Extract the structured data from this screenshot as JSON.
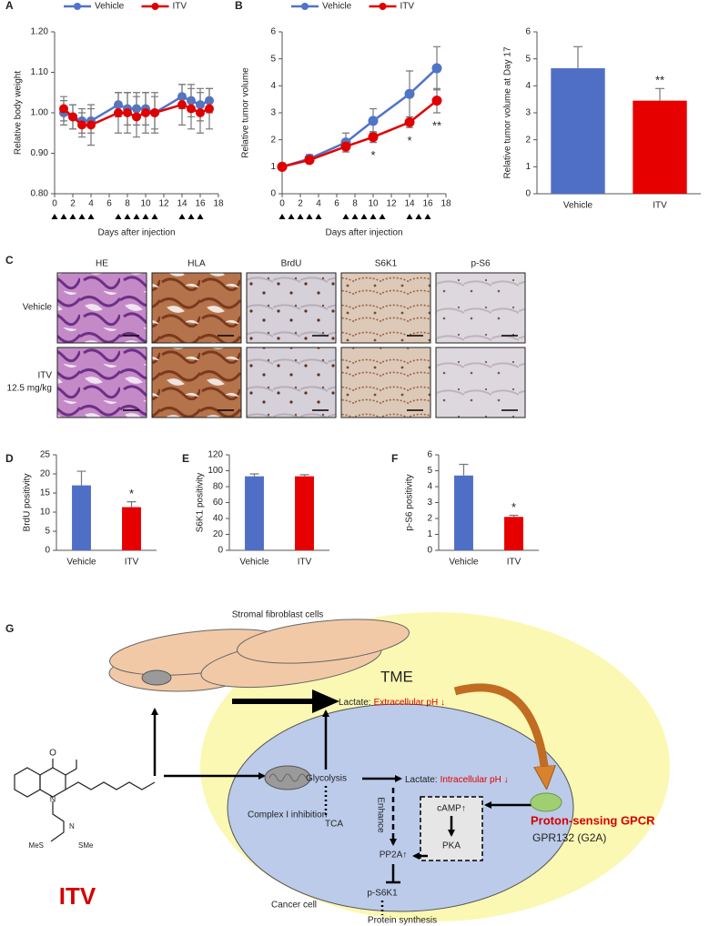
{
  "chart_data": [
    {
      "type": "line",
      "panel": "A",
      "xlabel": "Days after injection",
      "ylabel": "Relative body weight",
      "x": [
        1,
        2,
        3,
        4,
        7,
        8,
        9,
        10,
        11,
        14,
        15,
        16,
        17
      ],
      "xlim": [
        0,
        18
      ],
      "xticks": [
        0,
        2,
        4,
        6,
        8,
        10,
        12,
        14,
        16,
        18
      ],
      "ylim": [
        0.8,
        1.2
      ],
      "yticks": [
        {
          "value": 0.8,
          "label": "0.80"
        },
        {
          "value": 0.9,
          "label": "0.90"
        },
        {
          "value": 1.0,
          "label": "1.00"
        },
        {
          "value": 1.1,
          "label": "1.10"
        },
        {
          "value": 1.2,
          "label": "1.20"
        }
      ],
      "dose_days": [
        0,
        1,
        2,
        3,
        4,
        7,
        8,
        9,
        10,
        11,
        14,
        15,
        16
      ],
      "series": [
        {
          "name": "Vehicle",
          "color": "#4f74c8",
          "values": [
            1.0,
            0.99,
            0.98,
            0.98,
            1.02,
            1.01,
            1.01,
            1.01,
            1.0,
            1.04,
            1.03,
            1.02,
            1.03
          ],
          "errors": [
            0.03,
            0.03,
            0.03,
            0.03,
            0.03,
            0.04,
            0.04,
            0.04,
            0.05,
            0.03,
            0.04,
            0.04,
            0.03
          ]
        },
        {
          "name": "ITV",
          "color": "#e00000",
          "values": [
            1.01,
            0.99,
            0.97,
            0.97,
            1.0,
            1.0,
            0.99,
            1.0,
            1.0,
            1.02,
            1.01,
            1.0,
            1.01
          ],
          "errors": [
            0.03,
            0.03,
            0.03,
            0.05,
            0.05,
            0.05,
            0.05,
            0.05,
            0.04,
            0.05,
            0.05,
            0.05,
            0.05
          ]
        }
      ]
    },
    {
      "type": "line",
      "panel": "B",
      "xlabel": "Days after injection",
      "ylabel": "Relative tumor volume",
      "x": [
        0,
        3,
        7,
        10,
        14,
        17
      ],
      "xlim": [
        0,
        18
      ],
      "xticks": [
        0,
        2,
        4,
        6,
        8,
        10,
        12,
        14,
        16,
        18
      ],
      "ylim": [
        0,
        6
      ],
      "yticks": [
        0,
        1,
        2,
        3,
        4,
        5,
        6
      ],
      "dose_days": [
        0,
        1,
        2,
        3,
        4,
        7,
        8,
        9,
        10,
        11,
        14,
        15,
        16
      ],
      "series": [
        {
          "name": "Vehicle",
          "color": "#4f74c8",
          "values": [
            1.0,
            1.3,
            1.9,
            2.7,
            3.7,
            4.65
          ],
          "errors": [
            0.05,
            0.15,
            0.35,
            0.45,
            0.85,
            0.8
          ]
        },
        {
          "name": "ITV",
          "color": "#e00000",
          "values": [
            1.0,
            1.25,
            1.75,
            2.1,
            2.65,
            3.45
          ],
          "errors": [
            0.05,
            0.12,
            0.2,
            0.2,
            0.2,
            0.45
          ],
          "annotations": [
            null,
            null,
            null,
            "*",
            "*",
            "**"
          ]
        }
      ]
    },
    {
      "type": "bar",
      "ylabel": "Relative tumor volume at Day 17",
      "categories": [
        "Vehicle",
        "ITV"
      ],
      "values": [
        4.65,
        3.45
      ],
      "errors": [
        0.8,
        0.45
      ],
      "annotations": [
        null,
        "**"
      ],
      "colors": [
        "#4f6fc6",
        "#e60000"
      ],
      "ylim": [
        0,
        6
      ],
      "yticks": [
        0,
        1,
        2,
        3,
        4,
        5,
        6
      ]
    },
    {
      "type": "bar",
      "panel": "D",
      "ylabel": "BrdU positivity",
      "categories": [
        "Vehicle",
        "ITV"
      ],
      "values": [
        17,
        11.3
      ],
      "errors": [
        3.7,
        1.4
      ],
      "annotations": [
        null,
        "*"
      ],
      "colors": [
        "#4f6fc6",
        "#e60000"
      ],
      "ylim": [
        0,
        25
      ],
      "yticks": [
        0,
        5,
        10,
        15,
        20,
        25
      ]
    },
    {
      "type": "bar",
      "panel": "E",
      "ylabel": "S6K1 positivity",
      "categories": [
        "Vehicle",
        "ITV"
      ],
      "values": [
        93,
        93
      ],
      "errors": [
        3,
        2
      ],
      "colors": [
        "#4f6fc6",
        "#e60000"
      ],
      "ylim": [
        0,
        120
      ],
      "yticks": [
        0,
        20,
        40,
        60,
        80,
        100,
        120
      ]
    },
    {
      "type": "bar",
      "panel": "F",
      "ylabel": "p-S6 positivity",
      "categories": [
        "Vehicle",
        "ITV"
      ],
      "values": [
        4.7,
        2.1
      ],
      "errors": [
        0.7,
        0.1
      ],
      "annotations": [
        null,
        "*"
      ],
      "colors": [
        "#4f6fc6",
        "#e60000"
      ],
      "ylim": [
        0,
        6
      ],
      "yticks": [
        0,
        1,
        2,
        3,
        4,
        5,
        6
      ]
    }
  ],
  "histology": {
    "panel": "C",
    "columns": [
      "HE",
      "HLA",
      "BrdU",
      "S6K1",
      "p-S6"
    ],
    "rows": [
      [
        "Vehicle"
      ],
      [
        "ITV",
        "12.5 mg/kg"
      ]
    ]
  },
  "diagram": {
    "panel": "G",
    "stroma": "Stromal fibroblast cells",
    "tme": "TME",
    "lactate_out": "Lactate:",
    "extracellular": "Extracellular pH ↓",
    "glycolysis": "Glycolysis",
    "lactate_in": "Lactate:",
    "intracellular": "Intracellular pH ↓",
    "enhance": "Enhance",
    "camp": "cAMP↑",
    "pka": "PKA",
    "pp2a": "PP2A↑",
    "ps6k1": "p-S6K1",
    "protein": "Protein synthesis",
    "tca": "TCA",
    "complex": "Complex I inhibition",
    "cancer": "Cancer cell",
    "gpcr": "Proton-sensing GPCR",
    "gpr132": "GPR132 (G2A)",
    "drug": "ITV",
    "atoms": [
      "O",
      "N",
      "N",
      "MeS",
      "SMe"
    ]
  }
}
